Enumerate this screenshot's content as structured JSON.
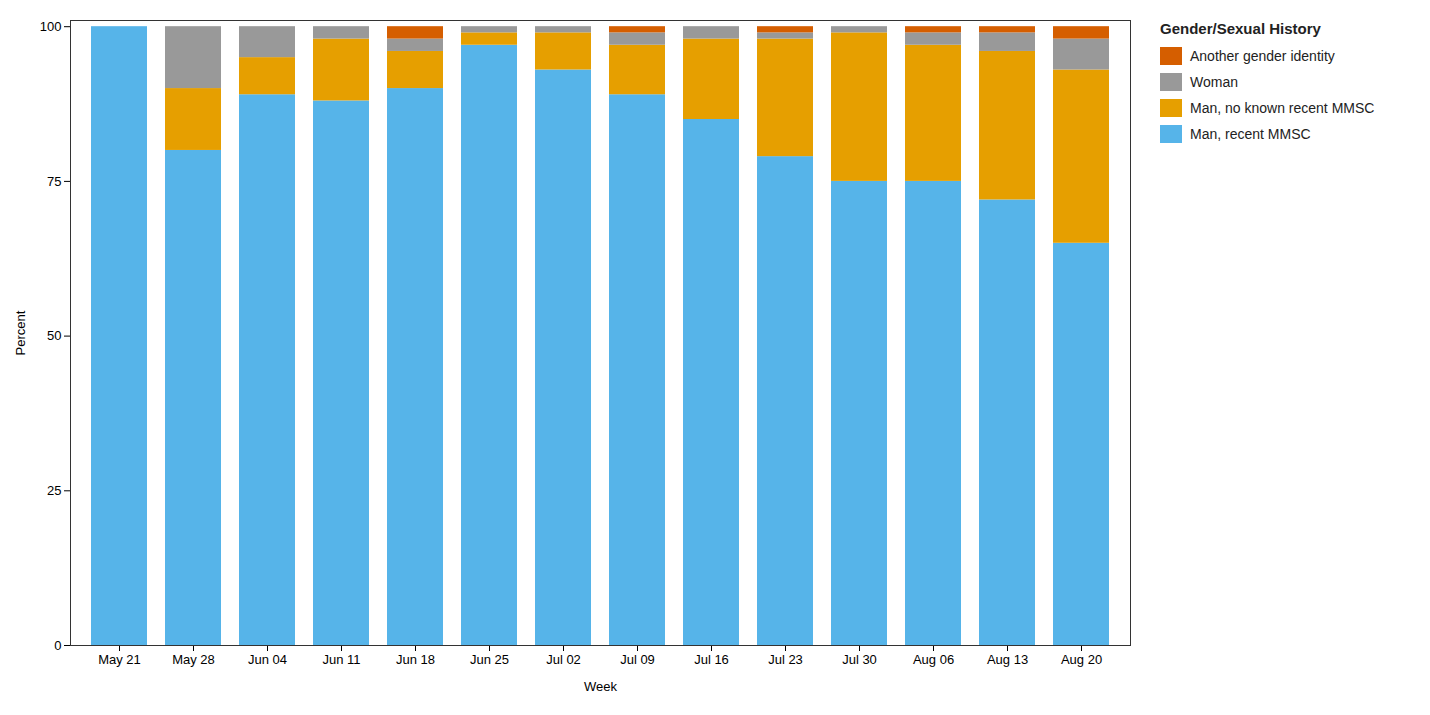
{
  "chart_data": {
    "type": "bar",
    "stacked": true,
    "categories": [
      "May 21",
      "May 28",
      "Jun 04",
      "Jun 11",
      "Jun 18",
      "Jun 25",
      "Jul 02",
      "Jul 09",
      "Jul 16",
      "Jul 23",
      "Jul 30",
      "Aug 06",
      "Aug 13",
      "Aug 20"
    ],
    "series": [
      {
        "name": "Man, recent MMSC",
        "color": "#56B4E9",
        "values": [
          100,
          80,
          89,
          88,
          90,
          97,
          93,
          89,
          85,
          79,
          75,
          75,
          72,
          65
        ]
      },
      {
        "name": "Man, no known recent MMSC",
        "color": "#E69F00",
        "values": [
          0,
          10,
          6,
          10,
          6,
          2,
          6,
          8,
          13,
          19,
          24,
          22,
          24,
          28
        ]
      },
      {
        "name": "Woman",
        "color": "#999999",
        "values": [
          0,
          10,
          5,
          2,
          2,
          1,
          1,
          2,
          2,
          1,
          1,
          2,
          3,
          5
        ]
      },
      {
        "name": "Another gender identity",
        "color": "#D55E00",
        "values": [
          0,
          0,
          0,
          0,
          2,
          0,
          0,
          1,
          0,
          1,
          0,
          1,
          1,
          2
        ]
      }
    ],
    "legend_title": "Gender/Sexual History",
    "legend": "right",
    "xlabel": "Week",
    "ylabel": "Percent",
    "ylim": [
      0,
      101
    ],
    "yticks": [
      0,
      25,
      50,
      75,
      100
    ],
    "grid": false
  }
}
